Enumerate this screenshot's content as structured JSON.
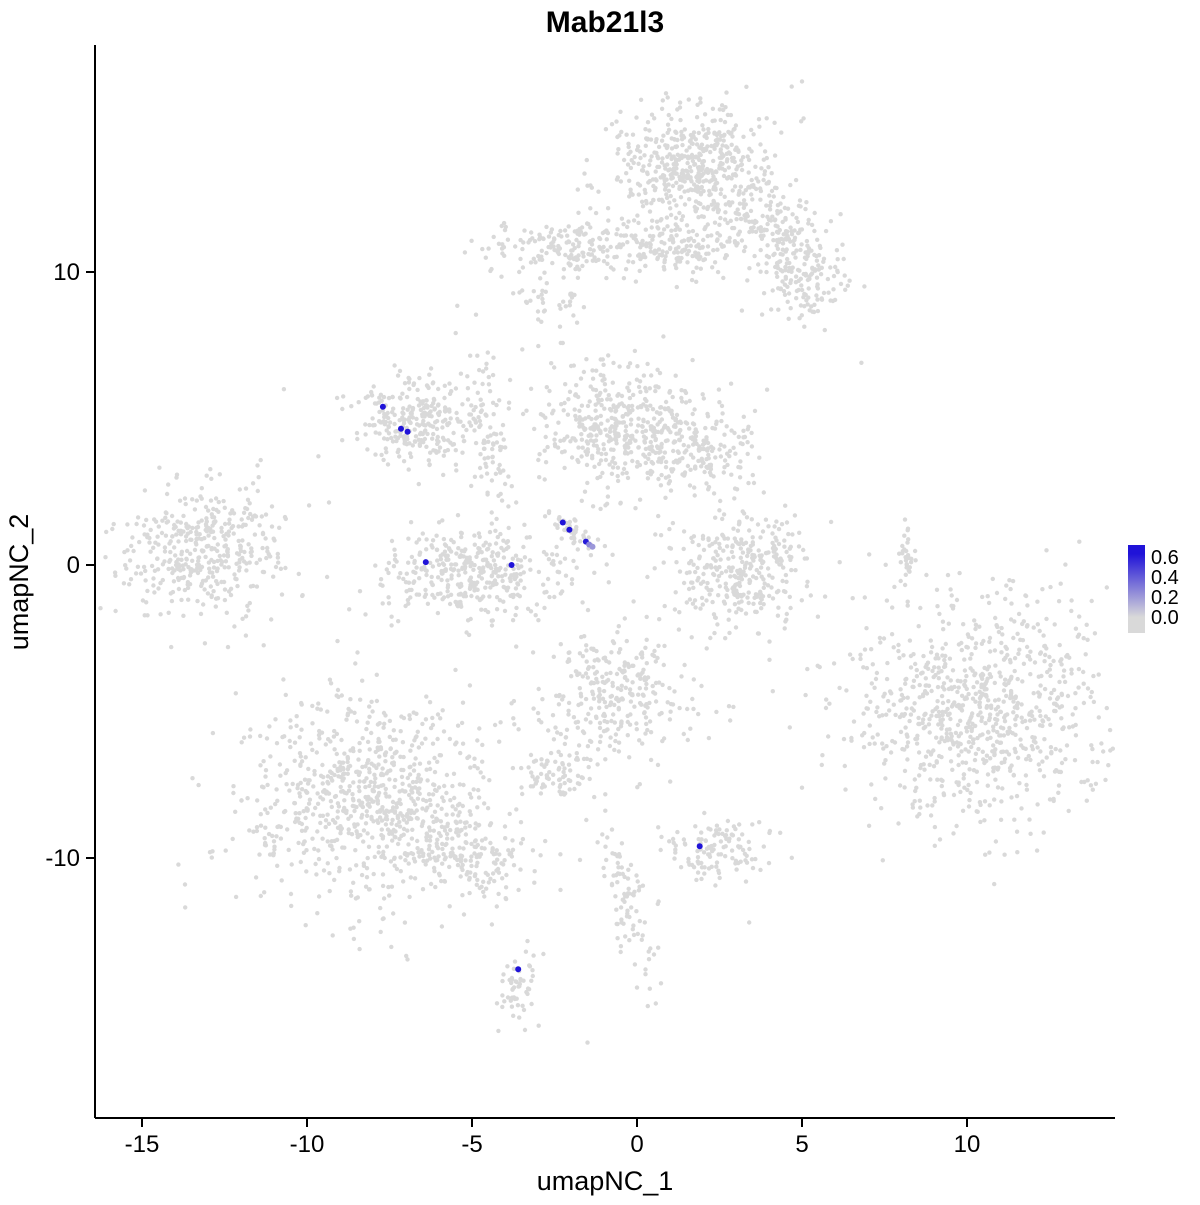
{
  "title": "Mab21l3",
  "chart_data": {
    "type": "scatter",
    "title": "Mab21l3",
    "xlabel": "umapNC_1",
    "ylabel": "umapNC_2",
    "xlim": [
      -16.4,
      14.5
    ],
    "ylim": [
      -18.9,
      17.7
    ],
    "grid": false,
    "legend_position": "right",
    "x_ticks": [
      {
        "value": -15,
        "label": "-15"
      },
      {
        "value": -10,
        "label": "-10"
      },
      {
        "value": -5,
        "label": "-5"
      },
      {
        "value": 0,
        "label": "0"
      },
      {
        "value": 5,
        "label": "5"
      },
      {
        "value": 10,
        "label": "10"
      }
    ],
    "y_ticks": [
      {
        "value": 10,
        "label": "10"
      },
      {
        "value": 0,
        "label": "0"
      },
      {
        "value": -10,
        "label": "-10"
      }
    ],
    "legend": {
      "min": 0.0,
      "max": 0.6,
      "ticks": [
        "0.6",
        "0.4",
        "0.2",
        "0.0"
      ]
    },
    "colors": {
      "point_grey": "#d9d9d9",
      "point_blue": "#2013d8",
      "legend_low": "#d9d9d9",
      "legend_high": "#2013d8"
    },
    "clusters": [
      {
        "name": "top-main",
        "cx": 1.7,
        "cy": 13.6,
        "sx": 1.15,
        "sy": 1.05,
        "n": 520,
        "rot": 0
      },
      {
        "name": "top-right-arm",
        "cx": 4.2,
        "cy": 11.5,
        "sx": 1.1,
        "sy": 0.75,
        "n": 200,
        "rot": -25
      },
      {
        "name": "top-right-low",
        "cx": 5.2,
        "cy": 9.6,
        "sx": 0.75,
        "sy": 0.65,
        "n": 110,
        "rot": 0
      },
      {
        "name": "band-left",
        "cx": -1.8,
        "cy": 10.9,
        "sx": 1.4,
        "sy": 0.45,
        "n": 200,
        "rot": 0
      },
      {
        "name": "band-mid",
        "cx": 1.2,
        "cy": 10.7,
        "sx": 1.0,
        "sy": 0.5,
        "n": 130,
        "rot": 0
      },
      {
        "name": "band-small",
        "cx": -2.6,
        "cy": 9.1,
        "sx": 0.45,
        "sy": 0.35,
        "n": 35,
        "rot": 0
      },
      {
        "name": "mid-center",
        "cx": -0.4,
        "cy": 4.7,
        "sx": 1.3,
        "sy": 1.1,
        "n": 480,
        "rot": 0
      },
      {
        "name": "mid-right-ext",
        "cx": 2.2,
        "cy": 3.8,
        "sx": 0.8,
        "sy": 0.7,
        "n": 130,
        "rot": 0
      },
      {
        "name": "left-mid",
        "cx": -6.7,
        "cy": 4.9,
        "sx": 0.95,
        "sy": 0.8,
        "n": 280,
        "rot": 0
      },
      {
        "name": "chain",
        "cx": -4.5,
        "cy": 4.6,
        "sx": 0.3,
        "sy": 1.7,
        "n": 90,
        "rot": 8
      },
      {
        "name": "c-cluster",
        "cx": -5.0,
        "cy": -0.3,
        "sx": 1.4,
        "sy": 0.75,
        "n": 380,
        "rot": 0
      },
      {
        "name": "diag-streak",
        "cx": -1.9,
        "cy": 1.1,
        "sx": 0.5,
        "sy": 0.16,
        "n": 45,
        "rot": -40
      },
      {
        "name": "far-left",
        "cx": -13.2,
        "cy": 0.6,
        "sx": 1.25,
        "sy": 1.15,
        "n": 420,
        "rot": 0
      },
      {
        "name": "right-crescent",
        "cx": 3.1,
        "cy": -0.2,
        "sx": 1.15,
        "sy": 0.95,
        "n": 330,
        "rot": 0
      },
      {
        "name": "right-streak",
        "cx": 8.2,
        "cy": 0.4,
        "sx": 0.18,
        "sy": 0.7,
        "n": 30,
        "rot": 0
      },
      {
        "name": "big-right",
        "cx": 10.3,
        "cy": -4.9,
        "sx": 1.9,
        "sy": 1.9,
        "n": 850,
        "rot": 0
      },
      {
        "name": "center-bottom",
        "cx": -0.6,
        "cy": -4.4,
        "sx": 1.1,
        "sy": 1.1,
        "n": 300,
        "rot": 0
      },
      {
        "name": "small-below",
        "cx": -2.4,
        "cy": -7.1,
        "sx": 0.55,
        "sy": 0.4,
        "n": 70,
        "rot": 0
      },
      {
        "name": "bottom-left",
        "cx": -8.2,
        "cy": -8.0,
        "sx": 2.0,
        "sy": 1.8,
        "n": 820,
        "rot": 0
      },
      {
        "name": "bottom-left-tail",
        "cx": -5.2,
        "cy": -9.8,
        "sx": 1.15,
        "sy": 0.6,
        "n": 160,
        "rot": -20
      },
      {
        "name": "blue-host-small",
        "cx": 2.4,
        "cy": -9.8,
        "sx": 0.85,
        "sy": 0.5,
        "n": 120,
        "rot": 0
      },
      {
        "name": "center-streak-low",
        "cx": -0.3,
        "cy": -11.6,
        "sx": 0.35,
        "sy": 1.5,
        "n": 90,
        "rot": 10
      },
      {
        "name": "bottom-small-streak",
        "cx": -3.5,
        "cy": -14.5,
        "sx": 0.28,
        "sy": 0.75,
        "n": 55,
        "rot": 0
      }
    ],
    "outliers": [
      [
        -10.7,
        6.0
      ],
      [
        6.8,
        6.9
      ],
      [
        -2.9,
        8.3
      ],
      [
        0.8,
        7.8
      ],
      [
        8.1,
        1.0
      ],
      [
        -4.2,
        -15.9
      ],
      [
        -1.5,
        -16.3
      ],
      [
        -11.5,
        3.4
      ],
      [
        7.4,
        -8.3
      ],
      [
        5.0,
        -7.6
      ],
      [
        3.4,
        -12.2
      ],
      [
        -0.9,
        -9.3
      ],
      [
        -12.2,
        -2.1
      ]
    ],
    "highlighted_points": [
      {
        "x": -7.7,
        "y": 5.4,
        "v": 0.65
      },
      {
        "x": -7.15,
        "y": 4.65,
        "v": 0.6
      },
      {
        "x": -6.95,
        "y": 4.55,
        "v": 0.6
      },
      {
        "x": -2.25,
        "y": 1.45,
        "v": 0.62
      },
      {
        "x": -2.05,
        "y": 1.2,
        "v": 0.6
      },
      {
        "x": -1.55,
        "y": 0.8,
        "v": 0.58
      },
      {
        "x": -1.45,
        "y": 0.7,
        "v": 0.25
      },
      {
        "x": -1.35,
        "y": 0.62,
        "v": 0.2
      },
      {
        "x": -6.4,
        "y": 0.1,
        "v": 0.6
      },
      {
        "x": -3.8,
        "y": 0.0,
        "v": 0.6
      },
      {
        "x": 1.9,
        "y": -9.6,
        "v": 0.62
      },
      {
        "x": -3.6,
        "y": -13.8,
        "v": 0.6
      }
    ]
  }
}
